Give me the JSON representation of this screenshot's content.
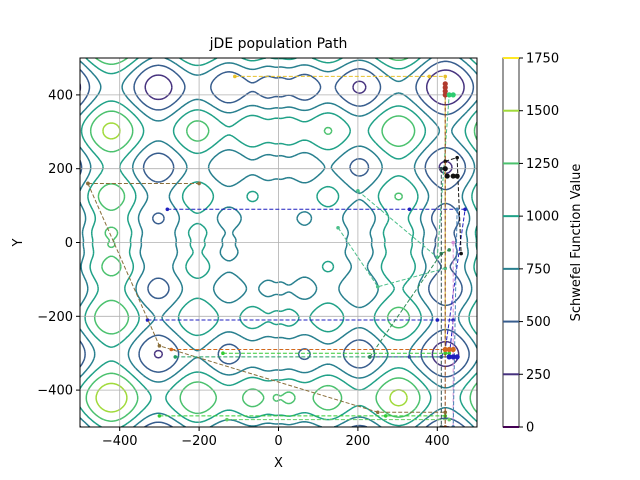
{
  "chart_data": {
    "type": "contour",
    "title": "jDE population Path",
    "xlabel": "X",
    "ylabel": "Y",
    "xlim": [
      -500,
      500
    ],
    "ylim": [
      -500,
      500
    ],
    "xticks": [
      -400,
      -200,
      0,
      200,
      400
    ],
    "yticks": [
      -400,
      -200,
      0,
      200,
      400
    ],
    "grid": true,
    "colorbar": {
      "label": "Schwefel Function Value",
      "range": [
        0,
        1750
      ],
      "ticks": [
        0,
        250,
        500,
        750,
        1000,
        1250,
        1500,
        1750
      ],
      "levels": [
        {
          "value": 0,
          "color": "#440154"
        },
        {
          "value": 250,
          "color": "#46327e"
        },
        {
          "value": 500,
          "color": "#365c8d"
        },
        {
          "value": 750,
          "color": "#277f8e"
        },
        {
          "value": 1000,
          "color": "#1fa187"
        },
        {
          "value": 1250,
          "color": "#4ac16d"
        },
        {
          "value": 1500,
          "color": "#a0da39"
        },
        {
          "value": 1750,
          "color": "#fde725"
        }
      ]
    },
    "contour_levels": [
      250,
      500,
      750,
      1000,
      1250,
      1500
    ],
    "paths": [
      {
        "color": "#e6c02a",
        "points": [
          [
            -110,
            450
          ],
          [
            380,
            450
          ],
          [
            420,
            450
          ],
          [
            420,
            -300
          ]
        ]
      },
      {
        "color": "#1f1fbf",
        "points": [
          [
            -280,
            90
          ],
          [
            330,
            90
          ],
          [
            470,
            90
          ],
          [
            420,
            -290
          ],
          [
            410,
            -310
          ]
        ]
      },
      {
        "color": "#1f1fbf",
        "points": [
          [
            -330,
            -210
          ],
          [
            400,
            -210
          ],
          [
            440,
            -210
          ],
          [
            430,
            -310
          ]
        ]
      },
      {
        "color": "#3a3aa8",
        "points": [
          [
            230,
            -310
          ],
          [
            330,
            -310
          ],
          [
            430,
            -310
          ],
          [
            440,
            -310
          ]
        ]
      },
      {
        "color": "#8a6f3a",
        "points": [
          [
            -480,
            160
          ],
          [
            -200,
            160
          ]
        ]
      },
      {
        "color": "#8a6f3a",
        "points": [
          [
            -480,
            160
          ],
          [
            -300,
            -280
          ],
          [
            250,
            -460
          ],
          [
            420,
            -460
          ]
        ]
      },
      {
        "color": "#d2691e",
        "points": [
          [
            -270,
            -290
          ],
          [
            420,
            -290
          ],
          [
            430,
            -290
          ]
        ]
      },
      {
        "color": "#22a060",
        "points": [
          [
            -260,
            -310
          ],
          [
            430,
            -310
          ]
        ]
      },
      {
        "color": "#33cc33",
        "points": [
          [
            -140,
            -300
          ],
          [
            420,
            -300
          ],
          [
            430,
            -300
          ]
        ]
      },
      {
        "color": "#32cd32",
        "points": [
          [
            -300,
            -470
          ],
          [
            270,
            -470
          ],
          [
            420,
            -470
          ]
        ]
      },
      {
        "color": "#66cc66",
        "points": [
          [
            -130,
            -480
          ],
          [
            430,
            -480
          ]
        ]
      },
      {
        "color": "#4cbf8a",
        "points": [
          [
            200,
            140
          ],
          [
            400,
            -40
          ],
          [
            430,
            400
          ],
          [
            440,
            400
          ]
        ]
      },
      {
        "color": "#4cbf8a",
        "points": [
          [
            150,
            40
          ],
          [
            250,
            -120
          ],
          [
            420,
            -70
          ]
        ]
      },
      {
        "color": "#2e8b57",
        "points": [
          [
            230,
            -310
          ],
          [
            410,
            -30
          ],
          [
            430,
            -20
          ]
        ]
      },
      {
        "color": "#111111",
        "points": [
          [
            420,
            220
          ],
          [
            450,
            230
          ],
          [
            460,
            -30
          ]
        ]
      },
      {
        "color": "#d68fd6",
        "points": [
          [
            440,
            0
          ],
          [
            440,
            -500
          ]
        ]
      },
      {
        "color": "#4682b4",
        "points": [
          [
            450,
            90
          ],
          [
            440,
            -500
          ]
        ]
      },
      {
        "color": "#8b4513",
        "points": [
          [
            420,
            430
          ],
          [
            420,
            -500
          ]
        ]
      },
      {
        "color": "#2f4f4f",
        "points": [
          [
            410,
            200
          ],
          [
            410,
            -500
          ]
        ]
      }
    ],
    "markers": [
      {
        "color": "#b03a2e",
        "points": [
          [
            420,
            420
          ],
          [
            420,
            410
          ],
          [
            420,
            400
          ],
          [
            420,
            430
          ]
        ]
      },
      {
        "color": "#111111",
        "points": [
          [
            420,
            200
          ],
          [
            425,
            180
          ],
          [
            440,
            180
          ],
          [
            450,
            180
          ]
        ]
      },
      {
        "color": "#2ecc71",
        "points": [
          [
            430,
            400
          ],
          [
            440,
            400
          ]
        ]
      },
      {
        "color": "#1f1fbf",
        "points": [
          [
            430,
            -310
          ],
          [
            440,
            -310
          ],
          [
            450,
            -310
          ]
        ]
      },
      {
        "color": "#d2691e",
        "points": [
          [
            420,
            -290
          ],
          [
            430,
            -290
          ],
          [
            440,
            -290
          ]
        ]
      }
    ]
  }
}
